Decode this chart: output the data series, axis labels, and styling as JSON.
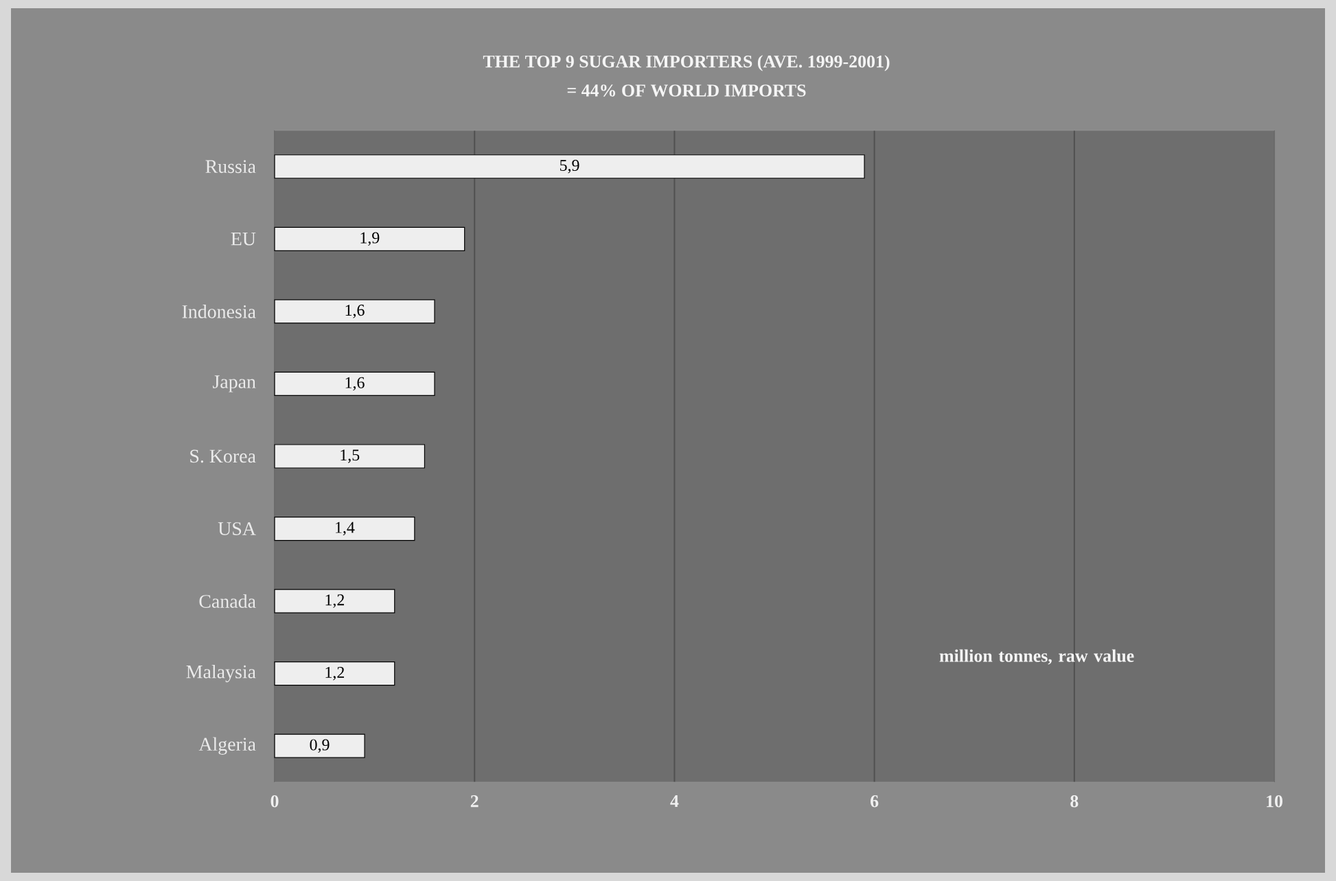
{
  "chart_data": {
    "type": "bar",
    "orientation": "horizontal",
    "title": "THE TOP 9 SUGAR IMPORTERS (AVE. 1999-2001)",
    "subtitle": "= 44% OF WORLD IMPORTS",
    "categories": [
      "Russia",
      "EU",
      "Indonesia",
      "Japan",
      "S. Korea",
      "USA",
      "Canada",
      "Malaysia",
      "Algeria"
    ],
    "values": [
      5.9,
      1.9,
      1.6,
      1.6,
      1.5,
      1.4,
      1.2,
      1.2,
      0.9
    ],
    "value_labels": [
      "5,9",
      "1,9",
      "1,6",
      "1,6",
      "1,5",
      "1,4",
      "1,2",
      "1,2",
      "0,9"
    ],
    "color": "#eeeeee",
    "xlim": [
      0,
      10
    ],
    "xticks": [
      0,
      2,
      4,
      6,
      8,
      10
    ],
    "grid": "x",
    "annotations": [
      "million tonnes, raw value"
    ]
  }
}
